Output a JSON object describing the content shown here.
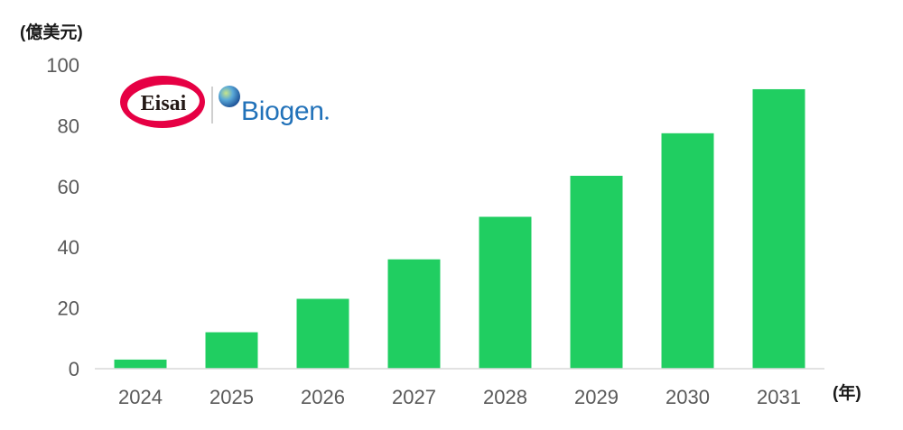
{
  "logos": {
    "eisai": {
      "text": "Eisai",
      "ring_color": "#e60044",
      "text_color": "#231815"
    },
    "biogen": {
      "text": "Biogen",
      "text_color": "#2272b9"
    }
  },
  "chart_data": {
    "type": "bar",
    "categories": [
      "2024",
      "2025",
      "2026",
      "2027",
      "2028",
      "2029",
      "2030",
      "2031"
    ],
    "values": [
      3,
      12,
      23,
      36,
      50,
      63.5,
      77.5,
      92
    ],
    "xlabel": "(年)",
    "ylabel": "(億美元)",
    "ylim": [
      0,
      100
    ],
    "yticks": [
      0,
      20,
      40,
      60,
      80,
      100
    ],
    "grid": false,
    "bar_color": "#20ce61",
    "tick_color": "#595959",
    "axis_color": "#d9d9d9"
  }
}
